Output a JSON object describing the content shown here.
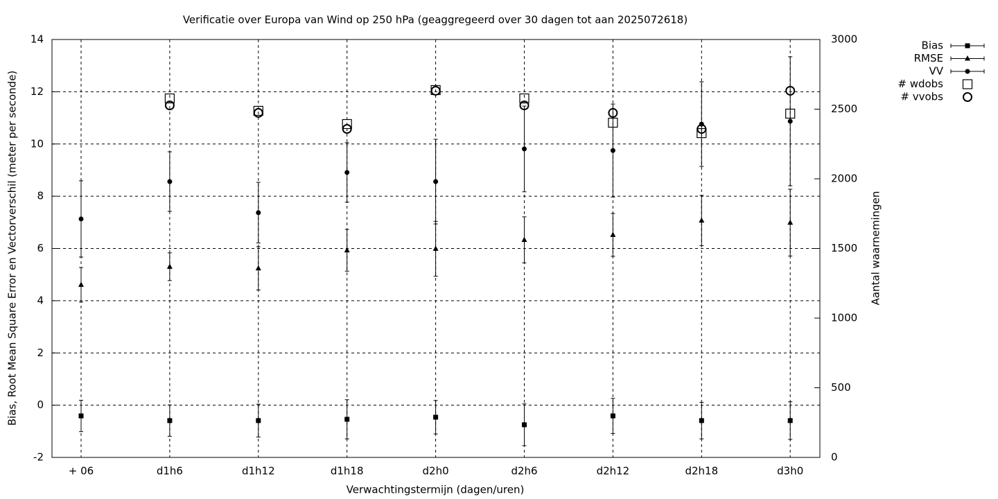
{
  "chart_data": {
    "type": "errorbar",
    "title": "Verificatie over Europa van Wind op 250 hPa (geaggregeerd over 30 dagen tot aan 2025072618)",
    "xlabel": "Verwachtingstermijn (dagen/uren)",
    "ylabel": "Bias, Root Mean Square Error en Vectorverschil (meter per seconde)",
    "y2label": "Aantal waarnemingen",
    "categories": [
      "+ 06",
      "d1h6",
      "d1h12",
      "d1h18",
      "d2h0",
      "d2h6",
      "d2h12",
      "d2h18",
      "d3h0"
    ],
    "ylim": [
      -2,
      14
    ],
    "yticks": [
      -2,
      0,
      2,
      4,
      6,
      8,
      10,
      12,
      14
    ],
    "y2lim": [
      0,
      3000
    ],
    "y2ticks": [
      0,
      500,
      1000,
      1500,
      2000,
      2500,
      3000
    ],
    "grid": true,
    "legend": "outside-top-right",
    "series": [
      {
        "name": "Bias",
        "color": "#000000",
        "marker": "square",
        "values": [
          -0.41,
          -0.59,
          -0.59,
          -0.54,
          -0.46,
          -0.75,
          -0.41,
          -0.59,
          -0.59
        ],
        "errors": [
          0.6,
          0.6,
          0.63,
          0.75,
          0.64,
          0.8,
          0.67,
          0.7,
          0.72
        ]
      },
      {
        "name": "RMSE",
        "color": "#000000",
        "marker": "triangle",
        "values": [
          4.61,
          5.3,
          5.24,
          5.93,
          5.99,
          6.33,
          6.52,
          7.07,
          6.99
        ],
        "errors": [
          0.66,
          0.53,
          0.83,
          0.8,
          1.05,
          0.88,
          0.82,
          0.96,
          1.28
        ]
      },
      {
        "name": "VV",
        "color": "#000000",
        "marker": "circle",
        "values": [
          7.13,
          8.56,
          7.37,
          8.91,
          8.56,
          9.81,
          9.75,
          10.76,
          10.87
        ],
        "errors": [
          1.46,
          1.14,
          1.16,
          1.14,
          1.62,
          1.64,
          1.78,
          1.62,
          2.47
        ]
      },
      {
        "name": "# wdobs",
        "color": "#000000",
        "marker": "open-square",
        "axis": "y2",
        "values": [
          null,
          2577,
          2488,
          2393,
          2637,
          2577,
          2403,
          2328,
          2468
        ]
      },
      {
        "name": "# vvobs",
        "color": "#000000",
        "marker": "open-circle",
        "axis": "y2",
        "values": [
          null,
          2527,
          2473,
          2358,
          2632,
          2527,
          2473,
          2358,
          2632
        ]
      }
    ]
  }
}
